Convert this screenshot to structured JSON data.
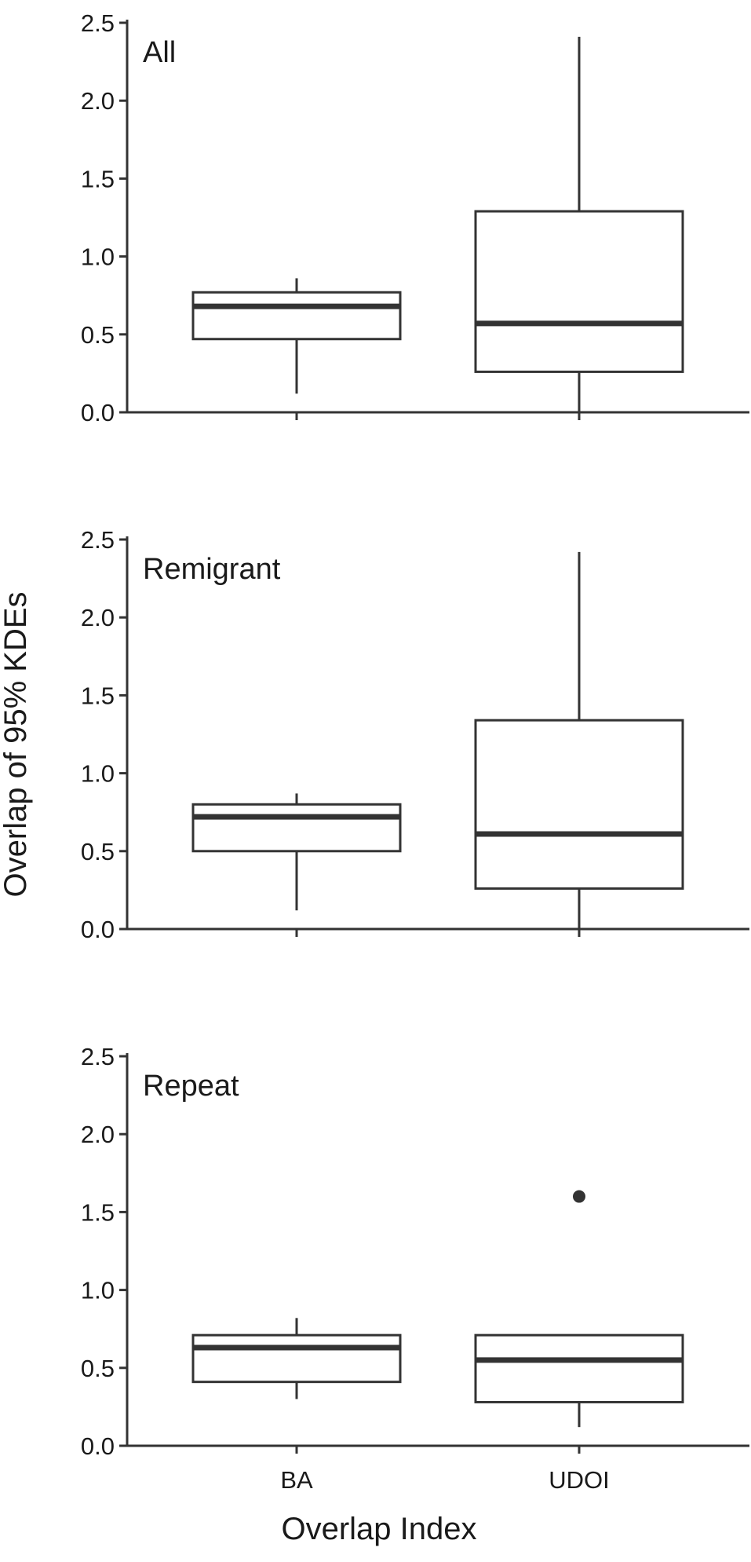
{
  "chart_data": {
    "type": "boxplot",
    "xlabel": "Overlap Index",
    "ylabel": "Overlap of 95% KDEs",
    "categories": [
      "BA",
      "UDOI"
    ],
    "ylim": [
      0,
      2.5
    ],
    "yticks": [
      "0.0",
      "0.5",
      "1.0",
      "1.5",
      "2.0",
      "2.5"
    ],
    "grid": false,
    "panels": [
      {
        "title": "All",
        "boxes": [
          {
            "category": "BA",
            "min": 0.12,
            "q1": 0.47,
            "median": 0.68,
            "q3": 0.77,
            "max": 0.86,
            "outliers": []
          },
          {
            "category": "UDOI",
            "min": 0.0,
            "q1": 0.26,
            "median": 0.57,
            "q3": 1.29,
            "max": 2.41,
            "outliers": []
          }
        ]
      },
      {
        "title": "Remigrant",
        "boxes": [
          {
            "category": "BA",
            "min": 0.12,
            "q1": 0.5,
            "median": 0.72,
            "q3": 0.8,
            "max": 0.87,
            "outliers": []
          },
          {
            "category": "UDOI",
            "min": 0.0,
            "q1": 0.26,
            "median": 0.61,
            "q3": 1.34,
            "max": 2.42,
            "outliers": []
          }
        ]
      },
      {
        "title": "Repeat",
        "boxes": [
          {
            "category": "BA",
            "min": 0.3,
            "q1": 0.41,
            "median": 0.63,
            "q3": 0.71,
            "max": 0.82,
            "outliers": []
          },
          {
            "category": "UDOI",
            "min": 0.12,
            "q1": 0.28,
            "median": 0.55,
            "q3": 0.71,
            "max": 0.71,
            "outliers": [
              1.6
            ]
          }
        ]
      }
    ]
  }
}
